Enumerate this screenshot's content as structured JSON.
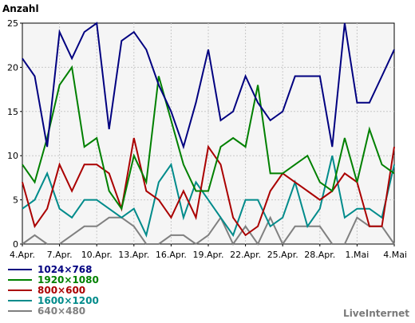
{
  "chart_data": {
    "type": "line",
    "ylabel": "Anzahl",
    "ylim": [
      0,
      25
    ],
    "yticks": [
      0,
      5,
      10,
      15,
      20,
      25
    ],
    "grid": true,
    "legend_position": "bottom-left",
    "x": [
      "4.Apr.",
      "5.Apr.",
      "6.Apr.",
      "7.Apr.",
      "8.Apr.",
      "9.Apr.",
      "10.Apr.",
      "11.Apr.",
      "12.Apr.",
      "13.Apr.",
      "14.Apr.",
      "15.Apr.",
      "16.Apr.",
      "17.Apr.",
      "18.Apr.",
      "19.Apr.",
      "20.Apr.",
      "21.Apr.",
      "22.Apr.",
      "23.Apr.",
      "24.Apr.",
      "25.Apr.",
      "26.Apr.",
      "27.Apr.",
      "28.Apr.",
      "29.Apr.",
      "30.Apr.",
      "1.Mai",
      "2.Mai",
      "3.Mai",
      "4.Mai"
    ],
    "xtick_labels": [
      "4.Apr.",
      "7.Apr.",
      "10.Apr.",
      "13.Apr.",
      "16.Apr.",
      "19.Apr.",
      "22.Apr.",
      "25.Apr.",
      "28.Apr.",
      "1.Mai",
      "4.Mai"
    ],
    "series": [
      {
        "name": "1024×768",
        "color": "#000080",
        "values": [
          21,
          19,
          11,
          24,
          21,
          24,
          25,
          13,
          23,
          24,
          22,
          18,
          15,
          11,
          16,
          22,
          14,
          15,
          19,
          16,
          14,
          15,
          19,
          19,
          19,
          11,
          25,
          16,
          16,
          19,
          22
        ]
      },
      {
        "name": "1920×1080",
        "color": "#008000",
        "values": [
          9,
          7,
          12,
          18,
          20,
          11,
          12,
          6,
          4,
          10,
          7,
          19,
          14,
          9,
          6,
          6,
          11,
          12,
          11,
          18,
          8,
          8,
          9,
          10,
          7,
          6,
          12,
          7,
          13,
          9,
          8
        ]
      },
      {
        "name": "800×600",
        "color": "#aa0000",
        "values": [
          7,
          2,
          4,
          9,
          6,
          9,
          9,
          8,
          4,
          12,
          6,
          5,
          3,
          6,
          3,
          11,
          9,
          3,
          1,
          2,
          6,
          8,
          7,
          6,
          5,
          6,
          8,
          7,
          2,
          2,
          11
        ]
      },
      {
        "name": "1600×1200",
        "color": "#008b8b",
        "values": [
          4,
          5,
          8,
          4,
          3,
          5,
          5,
          4,
          3,
          4,
          1,
          7,
          9,
          3,
          7,
          5,
          3,
          1,
          5,
          5,
          2,
          3,
          7,
          2,
          4,
          10,
          3,
          4,
          4,
          3,
          9
        ]
      },
      {
        "name": "640×480",
        "color": "#808080",
        "values": [
          0,
          1,
          0,
          0,
          1,
          2,
          2,
          3,
          3,
          2,
          0,
          0,
          1,
          1,
          0,
          1,
          3,
          0,
          2,
          0,
          3,
          0,
          2,
          2,
          2,
          0,
          0,
          3,
          2,
          2,
          0
        ]
      }
    ]
  },
  "brand": "LiveInternet"
}
